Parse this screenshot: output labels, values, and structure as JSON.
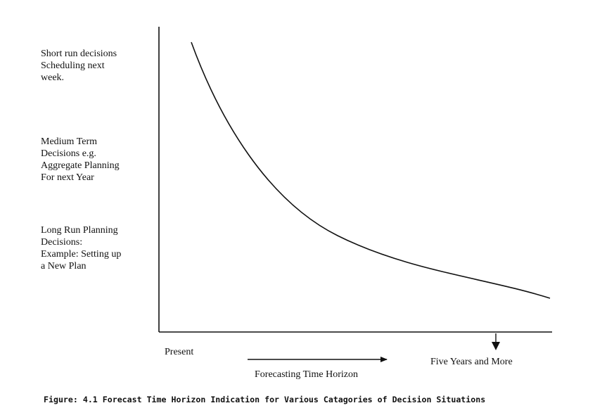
{
  "left_labels": {
    "short_run": "Short run decisions\nScheduling next\nweek.",
    "medium_term": "Medium Term\nDecisions e.g.\nAggregate Planning\nFor next Year",
    "long_run": "Long Run Planning\nDecisions:\nExample: Setting up\na New Plan"
  },
  "x_labels": {
    "present": "Present",
    "horizon": "Forecasting Time Horizon",
    "five_years": "Five Years and More"
  },
  "caption": "Figure: 4.1 Forecast Time Horizon Indication for Various Catagories of Decision Situations",
  "colors": {
    "ink": "#111111",
    "background": "#ffffff"
  }
}
